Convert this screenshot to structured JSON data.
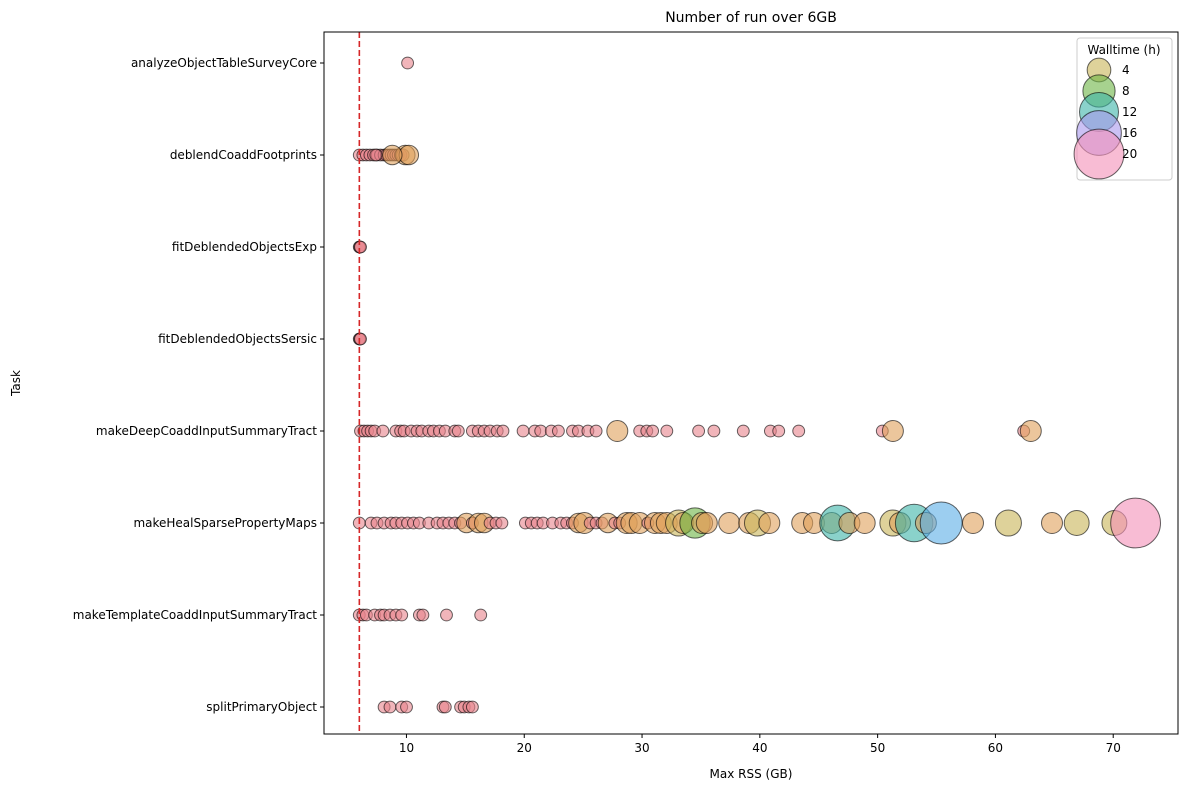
{
  "chart_data": {
    "type": "scatter",
    "title": "Number of run over 6GB",
    "xlabel": "Max RSS (GB)",
    "ylabel": "Task",
    "xlim": [
      3,
      75.5
    ],
    "xticks": [
      10,
      20,
      30,
      40,
      50,
      60,
      70
    ],
    "grid": false,
    "threshold_line": {
      "x": 6,
      "color": "#d62728",
      "style": "dashed"
    },
    "categories": [
      "analyzeObjectTableSurveyCore",
      "deblendCoaddFootprints",
      "fitDeblendedObjectsExp",
      "fitDeblendedObjectsSersic",
      "makeDeepCoaddInputSummaryTract",
      "makeHealSparsePropertyMaps",
      "makeTemplateCoaddInputSummaryTract",
      "splitPrimaryObject"
    ],
    "colormap": [
      {
        "max_walltime": 2,
        "color": "#e8838c"
      },
      {
        "max_walltime": 4,
        "color": "#e0a05a"
      },
      {
        "max_walltime": 6,
        "color": "#c8b456"
      },
      {
        "max_walltime": 9,
        "color": "#6cb444"
      },
      {
        "max_walltime": 12,
        "color": "#3cb4a8"
      },
      {
        "max_walltime": 15,
        "color": "#5aaee6"
      },
      {
        "max_walltime": 18,
        "color": "#a898ec"
      },
      {
        "max_walltime": 99,
        "color": "#f48fb8"
      }
    ],
    "series": [
      {
        "task": "analyzeObjectTableSurveyCore",
        "points": [
          [
            10.1,
            0.5
          ]
        ]
      },
      {
        "task": "deblendCoaddFootprints",
        "points": [
          [
            6.0,
            0.5
          ],
          [
            6.3,
            0.5
          ],
          [
            6.6,
            0.5
          ],
          [
            6.9,
            0.5
          ],
          [
            7.2,
            0.5
          ],
          [
            7.5,
            0.5
          ],
          [
            7.8,
            0.5
          ],
          [
            8.1,
            0.5
          ],
          [
            8.3,
            0.5
          ],
          [
            8.5,
            0.5
          ],
          [
            8.7,
            0.5
          ],
          [
            8.9,
            0.5
          ],
          [
            9.1,
            0.5
          ],
          [
            9.3,
            0.5
          ],
          [
            9.5,
            0.6
          ],
          [
            9.7,
            0.6
          ],
          [
            9.9,
            2.5
          ],
          [
            10.2,
            2.5
          ],
          [
            8.8,
            2.5
          ],
          [
            7.4,
            0.5
          ]
        ]
      },
      {
        "task": "fitDeblendedObjectsExp",
        "points": [
          [
            6.0,
            0.5
          ],
          [
            6.05,
            0.5
          ],
          [
            6.1,
            0.5
          ]
        ]
      },
      {
        "task": "fitDeblendedObjectsSersic",
        "points": [
          [
            6.0,
            0.5
          ],
          [
            6.05,
            0.5
          ],
          [
            6.1,
            0.5
          ]
        ]
      },
      {
        "task": "makeDeepCoaddInputSummaryTract",
        "points": [
          [
            6.1,
            0.5
          ],
          [
            6.4,
            0.5
          ],
          [
            6.7,
            0.5
          ],
          [
            7.0,
            0.5
          ],
          [
            7.3,
            0.5
          ],
          [
            8.0,
            0.5
          ],
          [
            9.1,
            0.5
          ],
          [
            9.5,
            0.5
          ],
          [
            9.8,
            0.5
          ],
          [
            10.4,
            0.5
          ],
          [
            10.9,
            0.5
          ],
          [
            11.3,
            0.5
          ],
          [
            11.9,
            0.5
          ],
          [
            12.3,
            0.5
          ],
          [
            12.8,
            0.5
          ],
          [
            13.3,
            0.5
          ],
          [
            14.1,
            0.5
          ],
          [
            14.4,
            0.5
          ],
          [
            15.6,
            0.5
          ],
          [
            16.1,
            0.5
          ],
          [
            16.6,
            0.5
          ],
          [
            17.1,
            0.5
          ],
          [
            17.7,
            0.5
          ],
          [
            18.2,
            0.5
          ],
          [
            19.9,
            0.5
          ],
          [
            20.9,
            0.5
          ],
          [
            21.4,
            0.5
          ],
          [
            22.3,
            0.5
          ],
          [
            22.9,
            0.5
          ],
          [
            24.1,
            0.5
          ],
          [
            24.6,
            0.5
          ],
          [
            25.4,
            0.5
          ],
          [
            26.1,
            0.5
          ],
          [
            27.9,
            3.0
          ],
          [
            29.8,
            0.5
          ],
          [
            30.4,
            0.5
          ],
          [
            30.9,
            0.5
          ],
          [
            32.1,
            0.5
          ],
          [
            34.8,
            0.5
          ],
          [
            36.1,
            0.5
          ],
          [
            38.6,
            0.5
          ],
          [
            40.9,
            0.5
          ],
          [
            41.6,
            0.5
          ],
          [
            43.3,
            0.5
          ],
          [
            50.4,
            0.5
          ],
          [
            51.3,
            3.0
          ],
          [
            62.4,
            0.5
          ],
          [
            63.0,
            3.0
          ]
        ]
      },
      {
        "task": "makeHealSparsePropertyMaps",
        "points": [
          [
            6.0,
            0.5
          ],
          [
            7.0,
            0.5
          ],
          [
            7.5,
            0.5
          ],
          [
            8.1,
            0.5
          ],
          [
            8.7,
            0.5
          ],
          [
            9.1,
            0.5
          ],
          [
            9.6,
            0.5
          ],
          [
            10.1,
            0.5
          ],
          [
            10.6,
            0.5
          ],
          [
            11.1,
            0.5
          ],
          [
            11.9,
            0.5
          ],
          [
            12.6,
            0.5
          ],
          [
            13.1,
            0.5
          ],
          [
            13.6,
            0.5
          ],
          [
            14.1,
            0.5
          ],
          [
            14.6,
            0.5
          ],
          [
            15.1,
            2.5
          ],
          [
            15.6,
            0.5
          ],
          [
            16.1,
            2.5
          ],
          [
            16.6,
            2.5
          ],
          [
            17.1,
            0.5
          ],
          [
            17.6,
            0.5
          ],
          [
            18.1,
            0.5
          ],
          [
            20.1,
            0.5
          ],
          [
            20.6,
            0.5
          ],
          [
            21.1,
            0.5
          ],
          [
            21.6,
            0.5
          ],
          [
            22.4,
            0.5
          ],
          [
            23.1,
            0.5
          ],
          [
            23.6,
            0.5
          ],
          [
            24.1,
            0.5
          ],
          [
            24.6,
            2.5
          ],
          [
            25.1,
            3.0
          ],
          [
            25.6,
            0.5
          ],
          [
            26.1,
            0.5
          ],
          [
            26.6,
            0.5
          ],
          [
            27.1,
            2.5
          ],
          [
            27.7,
            0.5
          ],
          [
            28.1,
            0.5
          ],
          [
            28.7,
            3.0
          ],
          [
            29.1,
            3.0
          ],
          [
            29.8,
            3.0
          ],
          [
            30.5,
            0.5
          ],
          [
            31.1,
            3.0
          ],
          [
            31.6,
            3.0
          ],
          [
            32.1,
            3.0
          ],
          [
            33.1,
            5.0
          ],
          [
            33.5,
            3.0
          ],
          [
            34.5,
            7.0
          ],
          [
            35.1,
            3.0
          ],
          [
            35.5,
            3.0
          ],
          [
            37.4,
            3.0
          ],
          [
            39.1,
            3.0
          ],
          [
            39.8,
            5.0
          ],
          [
            40.8,
            3.0
          ],
          [
            43.6,
            3.0
          ],
          [
            44.6,
            3.0
          ],
          [
            46.1,
            3.0
          ],
          [
            46.6,
            10.0
          ],
          [
            47.6,
            3.0
          ],
          [
            48.9,
            3.0
          ],
          [
            51.3,
            5.0
          ],
          [
            51.9,
            3.0
          ],
          [
            53.1,
            11.0
          ],
          [
            54.1,
            3.0
          ],
          [
            55.4,
            14.0
          ],
          [
            58.1,
            3.0
          ],
          [
            61.1,
            5.0
          ],
          [
            64.8,
            3.0
          ],
          [
            66.9,
            4.5
          ],
          [
            70.1,
            4.5
          ],
          [
            71.9,
            20.0
          ]
        ]
      },
      {
        "task": "makeTemplateCoaddInputSummaryTract",
        "points": [
          [
            6.0,
            0.5
          ],
          [
            6.3,
            0.5
          ],
          [
            6.6,
            0.5
          ],
          [
            7.3,
            0.5
          ],
          [
            7.8,
            0.5
          ],
          [
            8.1,
            0.5
          ],
          [
            8.6,
            0.5
          ],
          [
            9.1,
            0.5
          ],
          [
            9.6,
            0.5
          ],
          [
            11.1,
            0.5
          ],
          [
            11.4,
            0.5
          ],
          [
            13.4,
            0.5
          ],
          [
            16.3,
            0.5
          ]
        ]
      },
      {
        "task": "splitPrimaryObject",
        "points": [
          [
            8.1,
            0.5
          ],
          [
            8.6,
            0.5
          ],
          [
            9.6,
            0.5
          ],
          [
            10.0,
            0.5
          ],
          [
            13.1,
            0.5
          ],
          [
            13.3,
            0.5
          ],
          [
            14.6,
            0.5
          ],
          [
            14.9,
            0.5
          ],
          [
            15.3,
            0.5
          ],
          [
            15.6,
            0.5
          ]
        ]
      }
    ],
    "legend": {
      "title": "Walltime (h)",
      "position": "top-right",
      "entries": [
        {
          "label": "4",
          "walltime": 4,
          "color": "#c8b456"
        },
        {
          "label": "8",
          "walltime": 8,
          "color": "#6cb444"
        },
        {
          "label": "12",
          "walltime": 12,
          "color": "#3cb4a8"
        },
        {
          "label": "16",
          "walltime": 16,
          "color": "#a898ec"
        },
        {
          "label": "20",
          "walltime": 20,
          "color": "#f48fb8"
        }
      ]
    }
  }
}
